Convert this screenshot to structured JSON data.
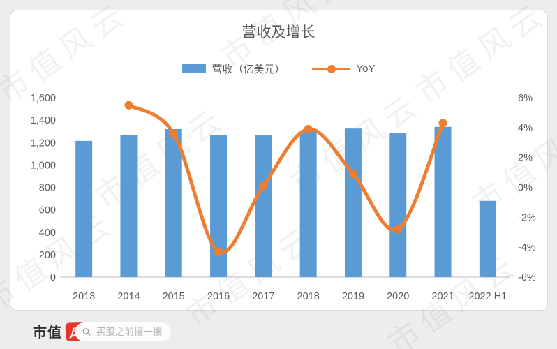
{
  "watermark": {
    "text": "市值风云"
  },
  "chart_data": {
    "type": "bar+line",
    "title": "营收及增长",
    "categories": [
      "2013",
      "2014",
      "2015",
      "2016",
      "2017",
      "2018",
      "2019",
      "2020",
      "2021",
      "2022 H1"
    ],
    "series": [
      {
        "name": "营收（亿美元）",
        "type": "bar",
        "axis": "left",
        "color": "#5B9BD5",
        "values": [
          1215,
          1270,
          1320,
          1265,
          1270,
          1305,
          1325,
          1285,
          1340,
          680
        ]
      },
      {
        "name": "YoY",
        "type": "line",
        "axis": "right",
        "color": "#ED7D31",
        "values": [
          null,
          5.5,
          3.6,
          -4.3,
          0.1,
          3.9,
          0.9,
          -2.8,
          4.3,
          null
        ]
      }
    ],
    "left_axis": {
      "min": 0,
      "max": 1600,
      "step": 200,
      "tick_labels": [
        "0",
        "200",
        "400",
        "600",
        "800",
        "1,000",
        "1,200",
        "1,400",
        "1,600"
      ]
    },
    "right_axis": {
      "min": -6,
      "max": 6,
      "step": 2,
      "tick_labels": [
        "-6%",
        "-4%",
        "-2%",
        "0%",
        "2%",
        "4%",
        "6%"
      ]
    },
    "grid": false,
    "legend_position": "top",
    "axis_text_color": "#595959",
    "baseline_color": "#c9c9c9"
  },
  "footer": {
    "logo_prefix": "市值",
    "logo_badge": "风云",
    "search_placeholder": "买股之前搜一搜"
  }
}
